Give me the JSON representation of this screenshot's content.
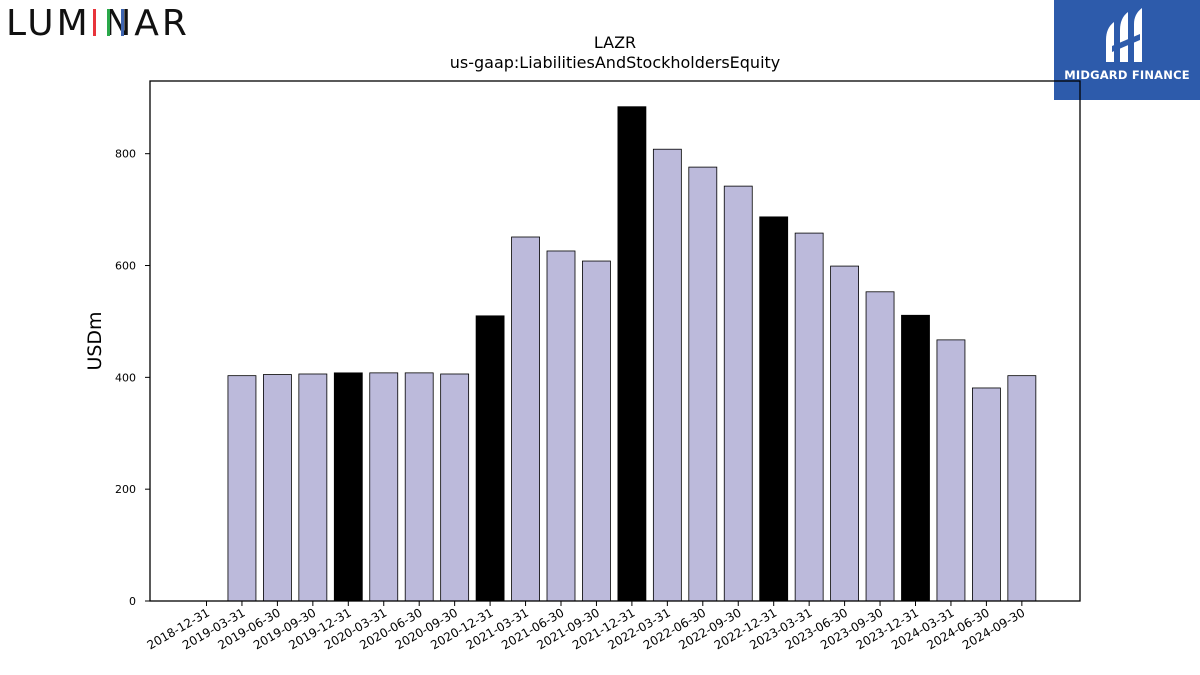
{
  "header": {
    "left_logo_text": "LUMINAR",
    "right_logo_text": "MIDGARD FINANCE",
    "right_logo_bg": "#2d5bab"
  },
  "colors": {
    "bar_default": "#bcbadb",
    "bar_highlight": "#000000",
    "luminar_i_red": "#e8343b",
    "luminar_i_green": "#2aa84a",
    "luminar_i_blue": "#3d64b0"
  },
  "chart_data": {
    "type": "bar",
    "title": "LAZR",
    "subtitle": "us-gaap:LiabilitiesAndStockholdersEquity",
    "xlabel": "",
    "ylabel": "USDm",
    "ylim": [
      0,
      930
    ],
    "yticks": [
      0,
      200,
      400,
      600,
      800
    ],
    "grid": false,
    "highlight_rule": "year-end (12-31) bars drawn in black",
    "categories": [
      "2018-12-31",
      "2019-03-31",
      "2019-06-30",
      "2019-09-30",
      "2019-12-31",
      "2020-03-31",
      "2020-06-30",
      "2020-09-30",
      "2020-12-31",
      "2021-03-31",
      "2021-06-30",
      "2021-09-30",
      "2021-12-31",
      "2022-03-31",
      "2022-06-30",
      "2022-09-30",
      "2022-12-31",
      "2023-03-31",
      "2023-06-30",
      "2023-09-30",
      "2023-12-31",
      "2024-03-31",
      "2024-06-30",
      "2024-09-30"
    ],
    "values": [
      0,
      403,
      405,
      406,
      408,
      408,
      408,
      406,
      510,
      651,
      626,
      608,
      884,
      808,
      776,
      742,
      687,
      658,
      599,
      553,
      511,
      467,
      381,
      403
    ],
    "highlight": [
      true,
      false,
      false,
      false,
      true,
      false,
      false,
      false,
      true,
      false,
      false,
      false,
      true,
      false,
      false,
      false,
      true,
      false,
      false,
      false,
      true,
      false,
      false,
      false
    ]
  }
}
